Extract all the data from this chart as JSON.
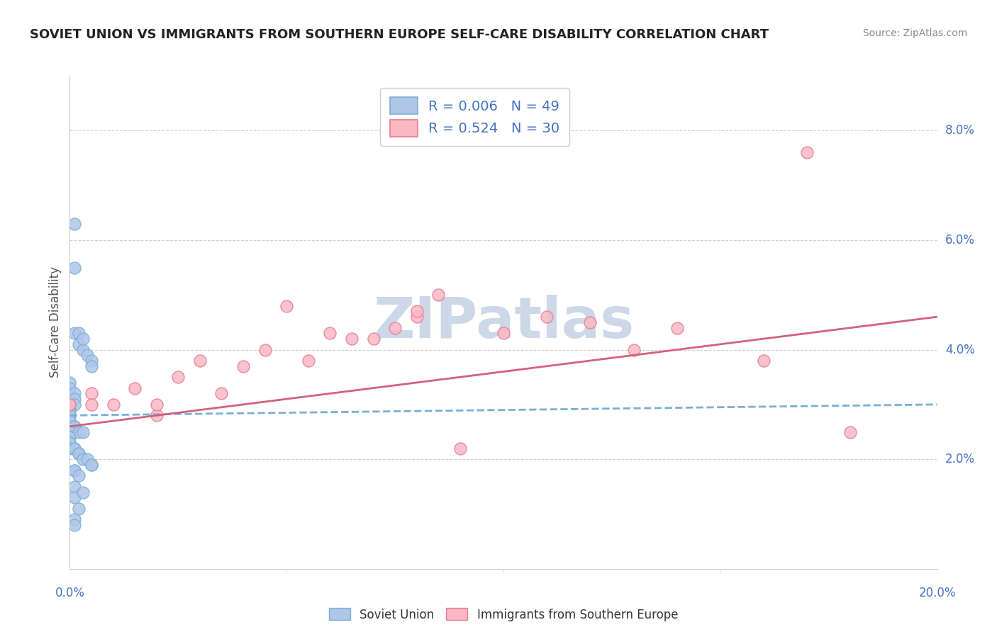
{
  "title": "SOVIET UNION VS IMMIGRANTS FROM SOUTHERN EUROPE SELF-CARE DISABILITY CORRELATION CHART",
  "source": "Source: ZipAtlas.com",
  "ylabel": "Self-Care Disability",
  "xlim": [
    0.0,
    0.2
  ],
  "ylim": [
    0.0,
    0.09
  ],
  "xticks": [
    0.0,
    0.05,
    0.1,
    0.15,
    0.2
  ],
  "ytick_positions": [
    0.02,
    0.04,
    0.06,
    0.08
  ],
  "ytick_labels": [
    "2.0%",
    "4.0%",
    "6.0%",
    "8.0%"
  ],
  "xtick_labels": [
    "0.0%",
    "",
    "",
    "",
    "20.0%"
  ],
  "legend1_entries": [
    {
      "label": "R = 0.006   N = 49",
      "facecolor": "#aec6e8",
      "edgecolor": "#7aafd4"
    },
    {
      "label": "R = 0.524   N = 30",
      "facecolor": "#f9b8c4",
      "edgecolor": "#e87a90"
    }
  ],
  "legend2_labels": [
    "Soviet Union",
    "Immigrants from Southern Europe"
  ],
  "blue_scatter_x": [
    0.001,
    0.001,
    0.001,
    0.002,
    0.002,
    0.003,
    0.003,
    0.004,
    0.005,
    0.005,
    0.0,
    0.0,
    0.001,
    0.001,
    0.001,
    0.0,
    0.0,
    0.0,
    0.0,
    0.0,
    0.0,
    0.0,
    0.001,
    0.001,
    0.0,
    0.002,
    0.003,
    0.0,
    0.0,
    0.0,
    0.0,
    0.0,
    0.001,
    0.001,
    0.002,
    0.002,
    0.003,
    0.004,
    0.005,
    0.005,
    0.001,
    0.001,
    0.002,
    0.001,
    0.001,
    0.002,
    0.001,
    0.001,
    0.003
  ],
  "blue_scatter_y": [
    0.063,
    0.055,
    0.043,
    0.043,
    0.041,
    0.04,
    0.042,
    0.039,
    0.038,
    0.037,
    0.034,
    0.033,
    0.032,
    0.031,
    0.03,
    0.03,
    0.029,
    0.029,
    0.028,
    0.028,
    0.027,
    0.027,
    0.026,
    0.026,
    0.025,
    0.025,
    0.025,
    0.024,
    0.024,
    0.023,
    0.023,
    0.022,
    0.022,
    0.022,
    0.021,
    0.021,
    0.02,
    0.02,
    0.019,
    0.019,
    0.018,
    0.018,
    0.017,
    0.015,
    0.013,
    0.011,
    0.009,
    0.008,
    0.014
  ],
  "pink_scatter_x": [
    0.0,
    0.01,
    0.02,
    0.025,
    0.03,
    0.035,
    0.04,
    0.045,
    0.05,
    0.055,
    0.06,
    0.065,
    0.07,
    0.075,
    0.08,
    0.085,
    0.09,
    0.1,
    0.11,
    0.12,
    0.13,
    0.14,
    0.005,
    0.015,
    0.16,
    0.17,
    0.18,
    0.005,
    0.02,
    0.08
  ],
  "pink_scatter_y": [
    0.03,
    0.03,
    0.028,
    0.035,
    0.038,
    0.032,
    0.037,
    0.04,
    0.048,
    0.038,
    0.043,
    0.042,
    0.042,
    0.044,
    0.046,
    0.05,
    0.022,
    0.043,
    0.046,
    0.045,
    0.04,
    0.044,
    0.032,
    0.033,
    0.038,
    0.076,
    0.025,
    0.03,
    0.03,
    0.047
  ],
  "blue_line_x": [
    0.0,
    0.2
  ],
  "blue_line_y": [
    0.028,
    0.03
  ],
  "pink_line_x": [
    0.0,
    0.2
  ],
  "pink_line_y": [
    0.026,
    0.046
  ],
  "blue_scatter_color": "#aec6e8",
  "blue_edge_color": "#7aafd4",
  "pink_scatter_color": "#f9b8c4",
  "pink_edge_color": "#e87a90",
  "blue_line_color": "#7aafd4",
  "pink_line_color": "#d4607a",
  "axis_color": "#4472c4",
  "grid_color": "#d0d0d0",
  "title_color": "#222222",
  "source_color": "#888888",
  "ylabel_color": "#555555",
  "watermark_color": "#ccd8e8",
  "background_color": "#ffffff"
}
